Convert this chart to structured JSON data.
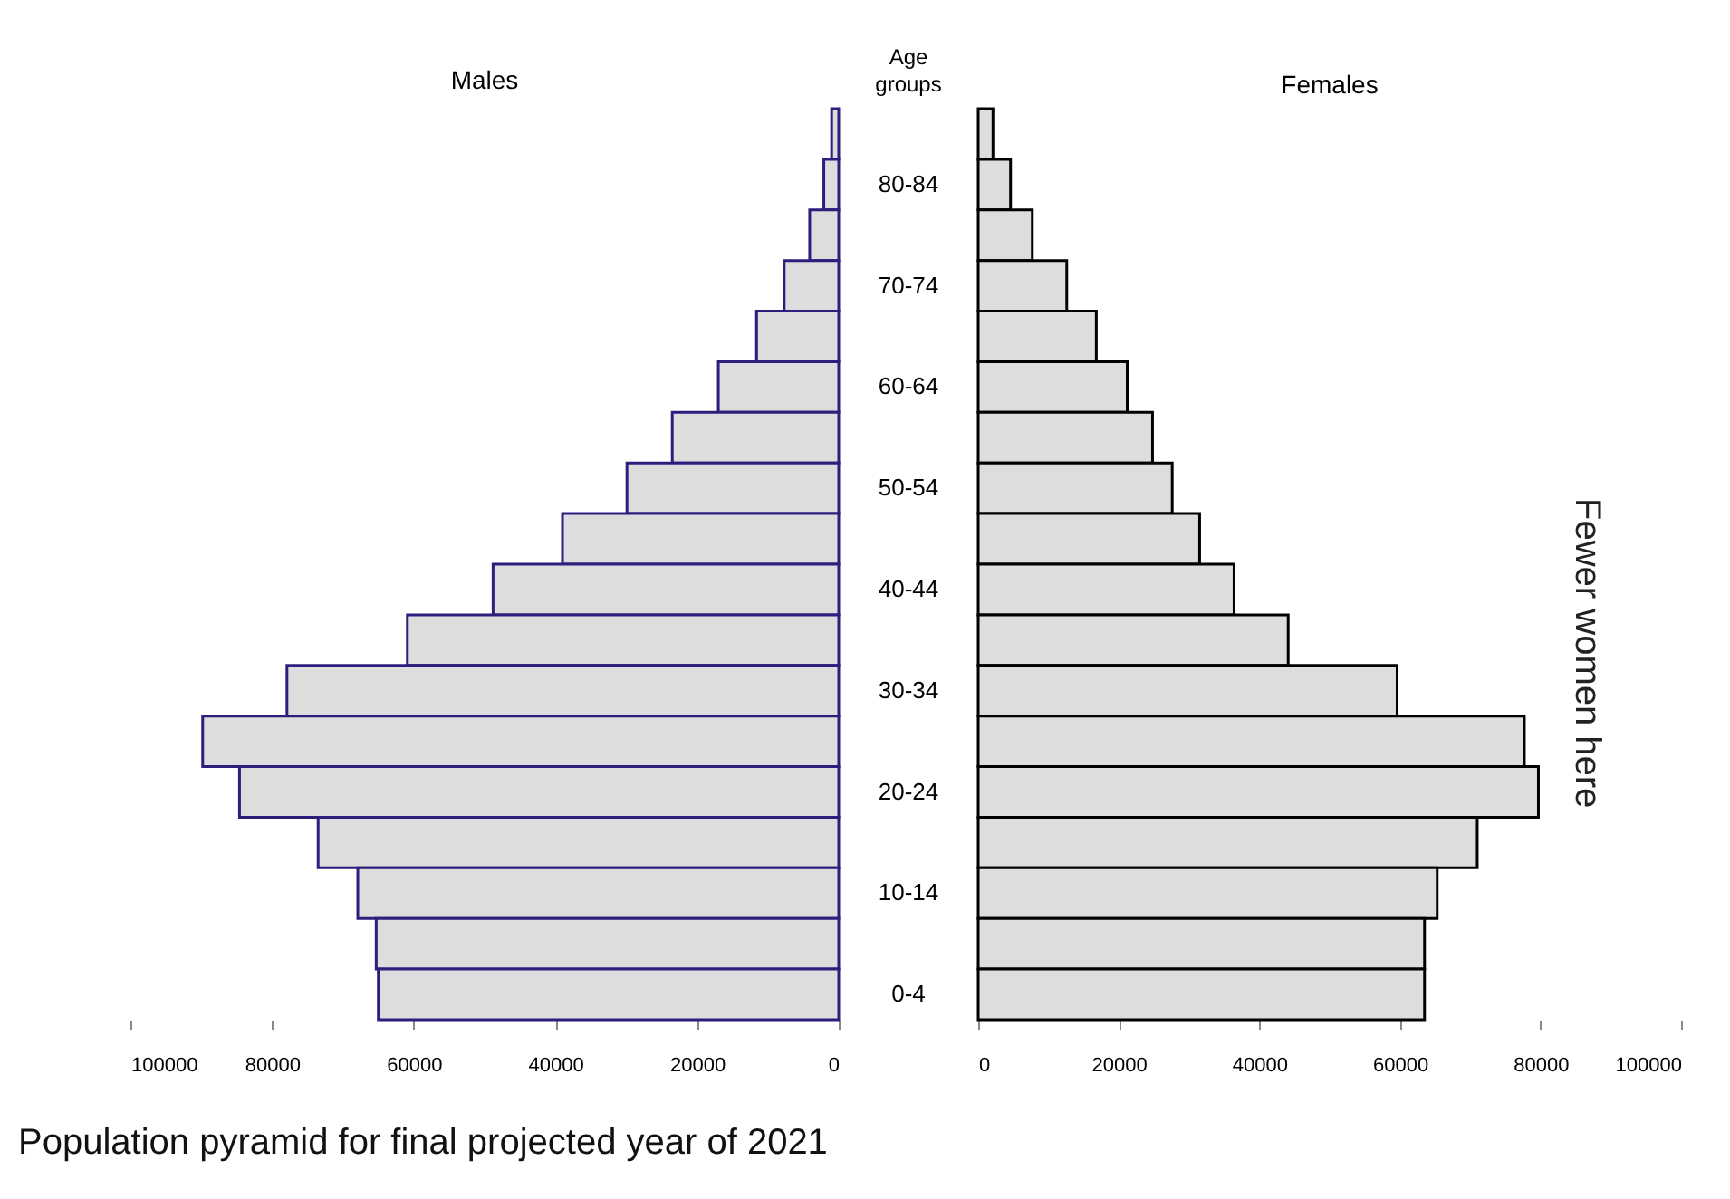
{
  "chart_data": [
    {
      "type": "bar",
      "orientation": "horizontal",
      "title": "Males",
      "ylabel": "Age groups",
      "annotations": [
        "Population pyramid for final projected year of 2021"
      ],
      "categories": [
        null,
        "80-84",
        null,
        "70-74",
        null,
        "60-64",
        null,
        "50-54",
        null,
        "40-44",
        null,
        "30-34",
        null,
        "20-24",
        null,
        "10-14",
        null,
        "0-4"
      ],
      "color": "#dddddd",
      "xlim": [
        100000,
        0
      ],
      "xticks": [
        100000,
        80000,
        60000,
        40000,
        20000,
        0
      ],
      "values": [
        1000,
        2100,
        4100,
        7700,
        11600,
        17000,
        23500,
        29900,
        39000,
        48800,
        60900,
        77900,
        89800,
        84600,
        73500,
        67900,
        65300,
        65000
      ]
    },
    {
      "type": "bar",
      "orientation": "horizontal",
      "title": "Females",
      "annotations": [
        "Fewer women here"
      ],
      "tick_labels": "x",
      "color": "#dddddd",
      "xlim": [
        0,
        100000
      ],
      "xticks": [
        0,
        20000,
        40000,
        60000,
        80000,
        100000
      ],
      "values": [
        2100,
        4600,
        7700,
        12600,
        16800,
        21200,
        24800,
        27600,
        31500,
        36400,
        44100,
        59600,
        77700,
        79700,
        71000,
        65300,
        63500,
        63500
      ]
    }
  ]
}
